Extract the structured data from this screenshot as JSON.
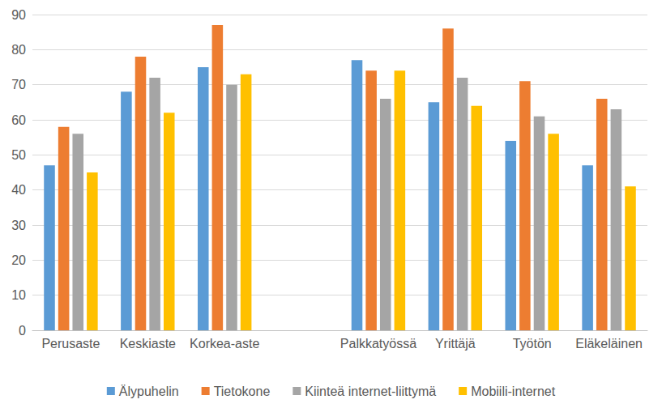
{
  "chart_data": {
    "type": "bar",
    "categories": [
      "Perusaste",
      "Keskiaste",
      "Korkea-aste",
      null,
      "Palkkatyössä",
      "Yrittäjä",
      "Työtön",
      "Eläkeläinen"
    ],
    "series": [
      {
        "name": "Älypuhelin",
        "color": "#5b9bd5",
        "values": [
          47,
          68,
          75,
          null,
          77,
          65,
          54,
          47
        ]
      },
      {
        "name": "Tietokone",
        "color": "#ed7d31",
        "values": [
          58,
          78,
          87,
          null,
          74,
          86,
          71,
          66
        ]
      },
      {
        "name": "Kiinteä internet-liittymä",
        "color": "#a5a5a5",
        "values": [
          56,
          72,
          70,
          null,
          66,
          72,
          61,
          63
        ]
      },
      {
        "name": "Mobiili-internet",
        "color": "#ffc000",
        "values": [
          45,
          62,
          73,
          null,
          74,
          64,
          56,
          41
        ]
      }
    ],
    "ylim": [
      0,
      90
    ],
    "yticks": [
      0,
      10,
      20,
      30,
      40,
      50,
      60,
      70,
      80,
      90
    ],
    "grid": true,
    "legend": "bottom"
  }
}
